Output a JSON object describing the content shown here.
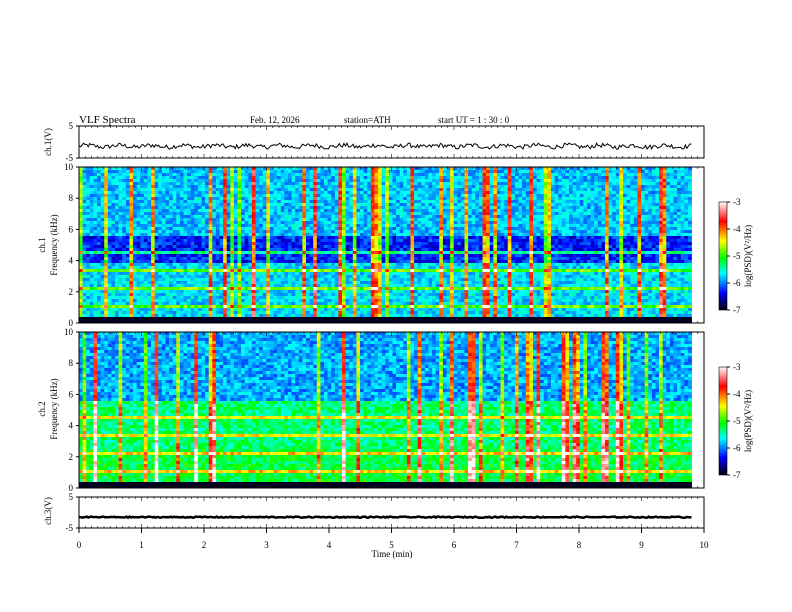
{
  "header": {
    "title": "VLF  Spectra",
    "date": "Feb. 12, 2026",
    "station": "station=ATH",
    "start": "start  UT  =   1 : 30 : 0"
  },
  "colorbar": {
    "label": "log(PSD)(V²/Hz)",
    "ticks": [
      "-3",
      "-4",
      "-5",
      "-6",
      "-7"
    ],
    "stops": [
      "#ffffff",
      "#ff0000",
      "#ffff00",
      "#00ff00",
      "#00ffff",
      "#0000ff",
      "#000000"
    ]
  },
  "chart_data": [
    {
      "type": "line",
      "panel": "ch1-waveform",
      "ylabel": "ch.1(V)",
      "yticks": [
        "5",
        "-5"
      ],
      "ylim": [
        -5,
        5
      ],
      "x_range_min": [
        0,
        9.8
      ],
      "baseline": -1.3
    },
    {
      "type": "heatmap",
      "panel": "ch1-spectrogram",
      "ylabel": "ch.1\nFrequency  (kHz)",
      "ylabel_lines": [
        "ch.1",
        "Frequency  (kHz)"
      ],
      "yticks": [
        "0",
        "2",
        "4",
        "6",
        "8",
        "10"
      ],
      "ylim": [
        0,
        10
      ],
      "x_range_min": [
        0,
        9.8
      ],
      "colorscale": "log(PSD)(V²/Hz)",
      "zlim": [
        -7,
        -3
      ]
    },
    {
      "type": "heatmap",
      "panel": "ch2-spectrogram",
      "ylabel_lines": [
        "ch.2",
        "Frequency  (kHz)"
      ],
      "yticks": [
        "0",
        "2",
        "4",
        "6",
        "8",
        "10"
      ],
      "ylim": [
        0,
        10
      ],
      "x_range_min": [
        0,
        9.8
      ],
      "colorscale": "log(PSD)(V²/Hz)",
      "zlim": [
        -7,
        -3
      ]
    },
    {
      "type": "line",
      "panel": "ch3-waveform",
      "ylabel": "ch.3(V)",
      "yticks": [
        "5",
        "-5"
      ],
      "ylim": [
        -5,
        5
      ],
      "x_range_min": [
        0,
        9.8
      ],
      "baseline": -1.5
    }
  ],
  "xaxis": {
    "label": "Time  (min)",
    "ticks": [
      "0",
      "1",
      "2",
      "3",
      "4",
      "5",
      "6",
      "7",
      "8",
      "9",
      "10"
    ],
    "xlim": [
      0,
      10
    ]
  }
}
